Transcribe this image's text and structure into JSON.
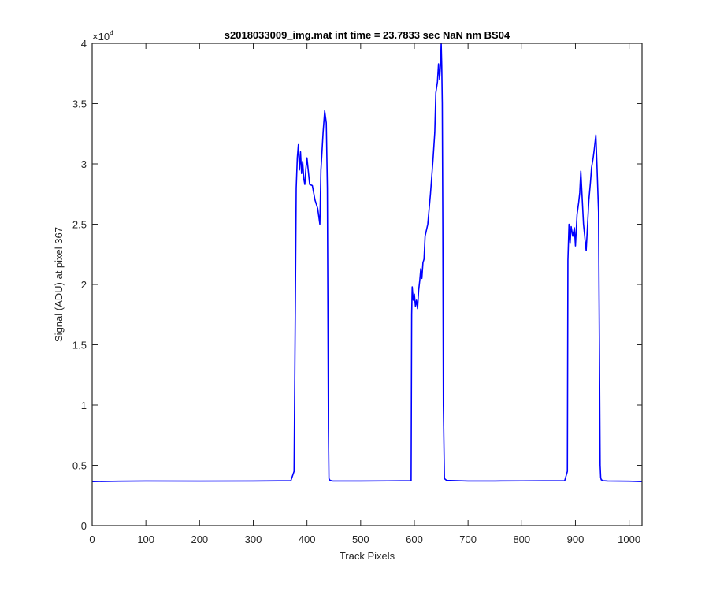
{
  "chart_data": {
    "type": "line",
    "title": "s2018033009_img.mat int time = 23.7833 sec  NaN nm BS04",
    "xlabel": "Track Pixels",
    "ylabel": "Signal (ADU) at pixel 367",
    "xlim": [
      0,
      1024
    ],
    "ylim": [
      0,
      40000
    ],
    "x_ticks": [
      "0",
      "100",
      "200",
      "300",
      "400",
      "500",
      "600",
      "700",
      "800",
      "900",
      "1000"
    ],
    "y_ticks": [
      "0",
      "0.5",
      "1",
      "1.5",
      "2",
      "2.5",
      "3",
      "3.5",
      "4"
    ],
    "y_exponent_base": "×10",
    "y_exponent_power": "4",
    "grid": false,
    "line_color": "#0000ff",
    "series": [
      {
        "x": [
          0,
          50,
          100,
          200,
          300,
          370,
          376,
          379,
          380,
          382,
          384,
          386,
          388,
          390,
          392,
          394,
          396,
          398,
          400,
          405,
          410,
          415,
          420,
          424,
          426,
          428,
          430,
          433,
          436,
          438,
          440,
          441,
          443,
          448,
          500,
          550,
          594,
          595,
          596,
          598,
          600,
          602,
          604,
          606,
          608,
          610,
          612,
          614,
          616,
          618,
          620,
          625,
          630,
          635,
          638,
          640,
          643,
          645,
          647,
          649,
          650,
          651,
          652,
          653,
          654,
          656,
          660,
          700,
          750,
          800,
          880,
          885,
          886,
          888,
          890,
          892,
          895,
          898,
          900,
          903,
          906,
          908,
          910,
          915,
          920,
          925,
          928,
          930,
          933,
          935,
          938,
          940,
          943,
          945,
          946,
          947,
          948,
          952,
          960,
          1000,
          1024
        ],
        "y": [
          3650,
          3680,
          3700,
          3690,
          3700,
          3720,
          4500,
          22000,
          28000,
          30500,
          31600,
          29500,
          31000,
          29200,
          30200,
          28800,
          28300,
          29600,
          30500,
          28300,
          28200,
          27000,
          26300,
          25000,
          29500,
          31000,
          32600,
          34400,
          33400,
          28000,
          8000,
          3900,
          3750,
          3700,
          3700,
          3710,
          3720,
          17500,
          19800,
          18700,
          19200,
          18200,
          18700,
          18000,
          19500,
          20300,
          21300,
          20500,
          21800,
          22100,
          24000,
          25000,
          27500,
          30500,
          32600,
          35900,
          36800,
          38300,
          37000,
          38400,
          40000,
          38200,
          35000,
          25000,
          10000,
          3900,
          3750,
          3700,
          3700,
          3710,
          3720,
          4500,
          22000,
          25000,
          23400,
          24800,
          24000,
          24700,
          23200,
          25800,
          26800,
          27600,
          29400,
          25000,
          22800,
          27000,
          28500,
          29700,
          30500,
          31200,
          32400,
          30000,
          26000,
          12000,
          5000,
          4000,
          3800,
          3720,
          3700,
          3680,
          3650
        ]
      }
    ]
  }
}
